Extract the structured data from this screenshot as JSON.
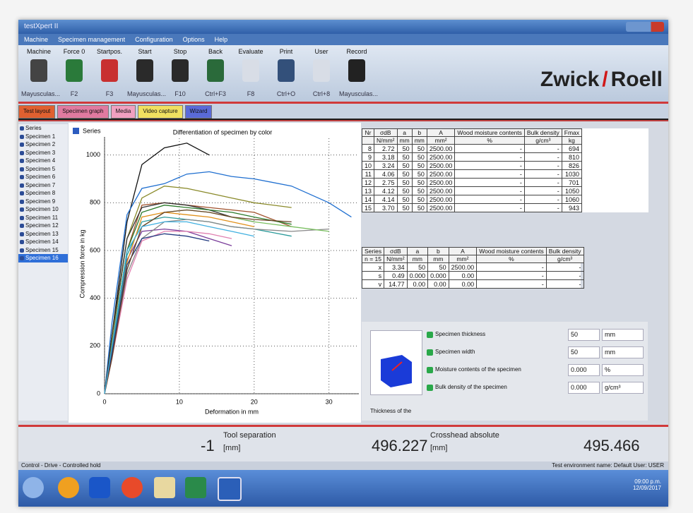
{
  "window": {
    "title": "testXpert II",
    "menu": [
      "Machine",
      "Specimen management",
      "Configuration",
      "Options",
      "Help"
    ],
    "toolbar": [
      {
        "label": "Machine",
        "shortcut": "Mayusculas..."
      },
      {
        "label": "Force 0",
        "shortcut": "F2"
      },
      {
        "label": "Startpos.",
        "shortcut": "F3"
      },
      {
        "label": "Start",
        "shortcut": "Mayusculas..."
      },
      {
        "label": "Stop",
        "shortcut": "F10"
      },
      {
        "label": "Back",
        "shortcut": "Ctrl+F3"
      },
      {
        "label": "Evaluate",
        "shortcut": "F8"
      },
      {
        "label": "Print",
        "shortcut": "Ctrl+O"
      },
      {
        "label": "User",
        "shortcut": "Ctrl+8"
      },
      {
        "label": "Record",
        "shortcut": "Mayusculas..."
      }
    ],
    "logo": {
      "left": "Zwick",
      "right": "Roell"
    },
    "tabs": [
      "Test layout",
      "Specimen graph",
      "Media",
      "Video capture",
      "Wizard"
    ]
  },
  "specimen_list": {
    "header": "Series",
    "items": [
      "Specimen 1",
      "Specimen 2",
      "Specimen 3",
      "Specimen 4",
      "Specimen 5",
      "Specimen 6",
      "Specimen 7",
      "Specimen 8",
      "Specimen 9",
      "Specimen 10",
      "Specimen 11",
      "Specimen 12",
      "Specimen 13",
      "Specimen 14",
      "Specimen 15",
      "Specimen 16"
    ]
  },
  "chart_data": {
    "type": "line",
    "title": "Differentiation of specimen by color",
    "legend_label": "Series",
    "x_label": "Deformation in mm",
    "y_label": "Compression force in kg",
    "x": [
      0,
      1,
      3,
      5,
      8,
      11,
      14,
      17,
      20,
      25,
      30,
      33
    ],
    "series": [
      {
        "color": "#111111",
        "values": [
          0,
          250,
          720,
          960,
          1030,
          1050,
          1000,
          null,
          null,
          null,
          null,
          null
        ]
      },
      {
        "color": "#1f6fd0",
        "values": [
          0,
          300,
          750,
          860,
          880,
          920,
          930,
          910,
          900,
          870,
          800,
          740
        ]
      },
      {
        "color": "#8a8a2a",
        "values": [
          0,
          220,
          650,
          820,
          870,
          860,
          840,
          820,
          800,
          780,
          null,
          null
        ]
      },
      {
        "color": "#a0522d",
        "values": [
          0,
          200,
          600,
          790,
          800,
          790,
          780,
          770,
          760,
          700,
          null,
          null
        ]
      },
      {
        "color": "#333333",
        "values": [
          0,
          250,
          650,
          780,
          800,
          790,
          770,
          740,
          720,
          null,
          null,
          null
        ]
      },
      {
        "color": "#7a3d9a",
        "values": [
          0,
          200,
          560,
          680,
          690,
          680,
          650,
          620,
          null,
          null,
          null,
          null
        ]
      },
      {
        "color": "#2a9a9a",
        "values": [
          0,
          180,
          580,
          720,
          740,
          730,
          720,
          700,
          690,
          660,
          null,
          null
        ]
      },
      {
        "color": "#888888",
        "values": [
          0,
          150,
          500,
          650,
          720,
          730,
          720,
          700,
          690,
          680,
          690,
          null
        ]
      },
      {
        "color": "#7ac060",
        "values": [
          0,
          170,
          520,
          700,
          760,
          770,
          760,
          740,
          720,
          700,
          680,
          null
        ]
      },
      {
        "color": "#e080b0",
        "values": [
          0,
          150,
          480,
          640,
          680,
          680,
          670,
          650,
          null,
          null,
          null,
          null
        ]
      },
      {
        "color": "#e0901a",
        "values": [
          0,
          160,
          550,
          740,
          760,
          750,
          740,
          720,
          700,
          null,
          null,
          null
        ]
      },
      {
        "color": "#2a7a2a",
        "values": [
          0,
          200,
          600,
          760,
          790,
          780,
          770,
          760,
          740,
          710,
          null,
          null
        ]
      },
      {
        "color": "#223a80",
        "values": [
          0,
          170,
          540,
          650,
          670,
          660,
          640,
          null,
          null,
          null,
          null,
          null
        ]
      },
      {
        "color": "#6b4226",
        "values": [
          0,
          150,
          520,
          700,
          760,
          770,
          760,
          740,
          730,
          720,
          null,
          null
        ]
      },
      {
        "color": "#40b0e0",
        "values": [
          0,
          200,
          600,
          700,
          720,
          720,
          700,
          680,
          660,
          null,
          null,
          null
        ]
      }
    ],
    "xlim": [
      0,
      34
    ],
    "ylim": [
      0,
      1070
    ],
    "xticks": [
      0,
      10,
      20,
      30
    ],
    "yticks": [
      0,
      200,
      400,
      600,
      800,
      1000
    ],
    "grid": true
  },
  "results_table": {
    "headers": [
      {
        "name": "Nr"
      },
      {
        "name": "σdB",
        "unit": "N/mm²"
      },
      {
        "name": "a",
        "unit": "mm"
      },
      {
        "name": "b",
        "unit": "mm"
      },
      {
        "name": "A",
        "unit": "mm²"
      },
      {
        "name": "Wood moisture contents",
        "unit": "%"
      },
      {
        "name": "Bulk density",
        "unit": "g/cm³"
      },
      {
        "name": "Fmax",
        "unit": "kg"
      }
    ],
    "rows": [
      [
        "8",
        "2.72",
        "50",
        "50",
        "2500.00",
        "-",
        "-",
        "694"
      ],
      [
        "9",
        "3.18",
        "50",
        "50",
        "2500.00",
        "-",
        "-",
        "810"
      ],
      [
        "10",
        "3.24",
        "50",
        "50",
        "2500.00",
        "-",
        "-",
        "826"
      ],
      [
        "11",
        "4.06",
        "50",
        "50",
        "2500.00",
        "-",
        "-",
        "1030"
      ],
      [
        "12",
        "2.75",
        "50",
        "50",
        "2500.00",
        "-",
        "-",
        "701"
      ],
      [
        "13",
        "4.12",
        "50",
        "50",
        "2500.00",
        "-",
        "-",
        "1050"
      ],
      [
        "14",
        "4.14",
        "50",
        "50",
        "2500.00",
        "-",
        "-",
        "1060"
      ],
      [
        "15",
        "3.70",
        "50",
        "50",
        "2500.00",
        "-",
        "-",
        "943"
      ]
    ]
  },
  "stats_table": {
    "headers": [
      {
        "name": "Series",
        "unit": "n = 15"
      },
      {
        "name": "σdB",
        "unit": "N/mm²"
      },
      {
        "name": "a",
        "unit": "mm"
      },
      {
        "name": "b",
        "unit": "mm"
      },
      {
        "name": "A",
        "unit": "mm²"
      },
      {
        "name": "Wood moisture contents",
        "unit": "%"
      },
      {
        "name": "Bulk density",
        "unit": "g/cm³"
      }
    ],
    "rows": [
      [
        "x",
        "3.34",
        "50",
        "50",
        "2500.00",
        "-",
        "-"
      ],
      [
        "s",
        "0.49",
        "0.000",
        "0.000",
        "0.00",
        "-",
        "-"
      ],
      [
        "v",
        "14.77",
        "0.00",
        "0.00",
        "0.00",
        "-",
        "-"
      ]
    ]
  },
  "parameters": [
    {
      "label": "Specimen thickness",
      "value": "50",
      "unit": "mm"
    },
    {
      "label": "Specimen width",
      "value": "50",
      "unit": "mm"
    },
    {
      "label": "Moisture contents of the specimen",
      "value": "0.000",
      "unit": "%"
    },
    {
      "label": "Bulk density of the specimen",
      "value": "0.000",
      "unit": "g/cm³"
    }
  ],
  "preview_caption": "Thickness of the",
  "readouts": [
    {
      "value": "-1",
      "label": "Tool separation",
      "unit": "[mm]"
    },
    {
      "value": "496.227",
      "label": "Crosshead absolute",
      "unit": "[mm]"
    },
    {
      "value": "495.466"
    }
  ],
  "status": {
    "left": "Control - Drive - Controlled hold",
    "right": "Test environment name: Default  User: USER",
    "time": "09:00 p.m.",
    "date": "12/09/2017"
  }
}
